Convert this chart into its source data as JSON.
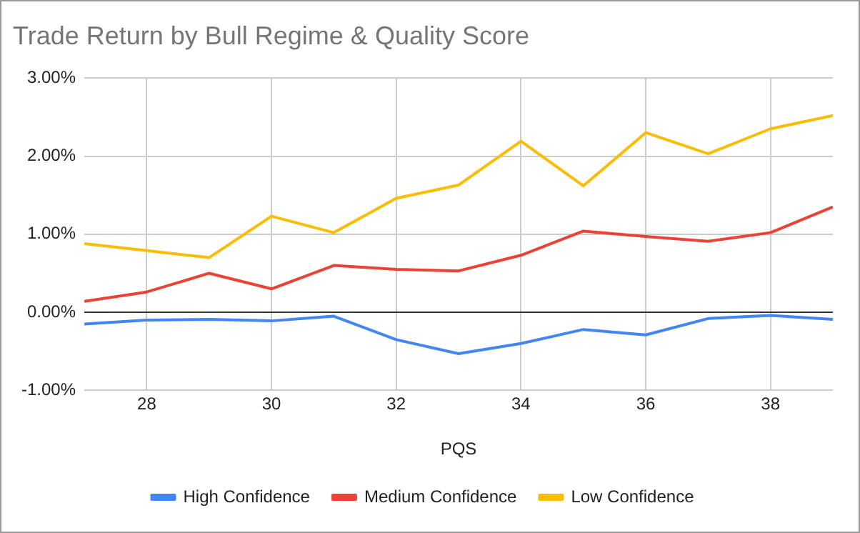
{
  "chart_data": {
    "type": "line",
    "title": "Trade Return by Bull Regime & Quality Score",
    "xlabel": "PQS",
    "x": [
      27,
      28,
      29,
      30,
      31,
      32,
      33,
      34,
      35,
      36,
      37,
      38,
      39
    ],
    "series": [
      {
        "name": "High Confidence",
        "color": "#4285f4",
        "values": [
          -0.15,
          -0.1,
          -0.09,
          -0.11,
          -0.05,
          -0.35,
          -0.53,
          -0.4,
          -0.22,
          -0.29,
          -0.08,
          -0.04,
          -0.09
        ]
      },
      {
        "name": "Medium Confidence",
        "color": "#ea4335",
        "values": [
          0.14,
          0.26,
          0.5,
          0.3,
          0.6,
          0.55,
          0.53,
          0.73,
          1.04,
          0.97,
          0.91,
          1.02,
          1.35
        ]
      },
      {
        "name": "Low Confidence",
        "color": "#fbbc04",
        "values": [
          0.88,
          0.79,
          0.7,
          1.23,
          1.02,
          1.46,
          1.63,
          2.19,
          1.62,
          2.3,
          2.03,
          2.35,
          2.52
        ]
      }
    ],
    "xlim": [
      27,
      39
    ],
    "xticks": [
      28,
      30,
      32,
      34,
      36,
      38
    ],
    "ylim": [
      -1,
      3
    ],
    "yticks": [
      {
        "value": -1,
        "label": "-1.00%"
      },
      {
        "value": 0,
        "label": "0.00%"
      },
      {
        "value": 1,
        "label": "1.00%"
      },
      {
        "value": 2,
        "label": "2.00%"
      },
      {
        "value": 3,
        "label": "3.00%"
      }
    ],
    "ref_lines": [
      {
        "axis": "y",
        "value": 0,
        "color": "#333333"
      }
    ],
    "grid": true,
    "legend": "bottom",
    "marker": "none",
    "line_style": "solid"
  }
}
